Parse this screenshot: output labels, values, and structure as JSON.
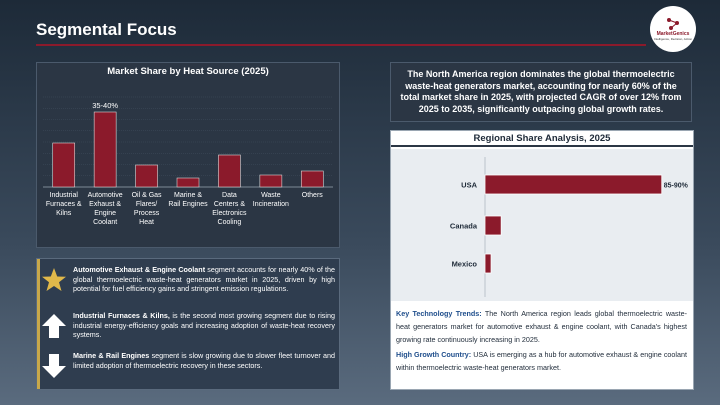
{
  "page": {
    "title": "Segmental Focus",
    "logo_name": "MarketGenics",
    "logo_tagline": "Intelligence, Decision, Action"
  },
  "colors": {
    "bar": "#8b1a2b",
    "accent": "#c8a84a",
    "heading_blue": "#1f4e8c"
  },
  "chart_data": [
    {
      "type": "bar",
      "title": "Market Share by Heat Source (2025)",
      "categories": [
        "Industrial Furnaces & Kilns",
        "Automotive Exhaust & Engine Coolant",
        "Oil & Gas Flares/ Process Heat",
        "Marine & Rail Engines",
        "Data Centers & Electronics Cooling",
        "Waste Incineration",
        "Others"
      ],
      "category_lines": [
        [
          "Industrial",
          "Furnaces &",
          "Kilns"
        ],
        [
          "Automotive",
          "Exhaust &",
          "Engine",
          "Coolant"
        ],
        [
          "Oil & Gas",
          "Flares/",
          "Process",
          "Heat"
        ],
        [
          "Marine &",
          "Rail Engines"
        ],
        [
          "Data",
          "Centers &",
          "Electronics",
          "Cooling"
        ],
        [
          "Waste",
          "Incineration"
        ],
        [
          "Others"
        ]
      ],
      "values": [
        22,
        37.5,
        11,
        4.5,
        16,
        6,
        8
      ],
      "data_labels": [
        "",
        "35-40%",
        "",
        "",
        "",
        "",
        ""
      ],
      "ylim": [
        0,
        45
      ],
      "grid": true
    },
    {
      "type": "bar",
      "orientation": "horizontal",
      "title": "Regional Share Analysis, 2025",
      "categories": [
        "USA",
        "Canada",
        "Mexico"
      ],
      "values": [
        87.5,
        8,
        3
      ],
      "data_labels": [
        "85-90%",
        "",
        ""
      ],
      "xlim": [
        0,
        100
      ]
    }
  ],
  "headline": "The North America region dominates the global thermoelectric waste-heat generators market, accounting for nearly 60% of the total market share in 2025, with projected CAGR of over 12% from 2025 to 2035, significantly outpacing global growth rates.",
  "cards": [
    {
      "icon": "star-icon",
      "bold": "Automotive Exhaust & Engine Coolant",
      "text": " segment accounts for nearly 40% of the global thermoelectric waste-heat generators market in 2025, driven by high potential for fuel efficiency gains and stringent emission regulations."
    },
    {
      "icon": "arrow-up-icon",
      "bold": "Industrial Furnaces & Kilns,",
      "text": " is the second most growing segment due to rising industrial energy-efficiency goals and increasing adoption of waste-heat recovery systems."
    },
    {
      "icon": "arrow-down-icon",
      "bold": "Marine & Rail Engines",
      "text": " segment is slow growing due to slower fleet turnover and limited adoption of thermoelectric recovery in these sectors."
    }
  ],
  "trends": {
    "key_label": "Key Technology Trends:",
    "key_text": " The North America region leads global thermoelectric waste-heat generators market for automotive exhaust & engine coolant, with Canada's highest growing rate continuously increasing in 2025.",
    "growth_label": "High Growth Country:",
    "growth_text": " USA is emerging as a hub for  automotive exhaust & engine coolant within thermoelectric  waste-heat generators market."
  }
}
